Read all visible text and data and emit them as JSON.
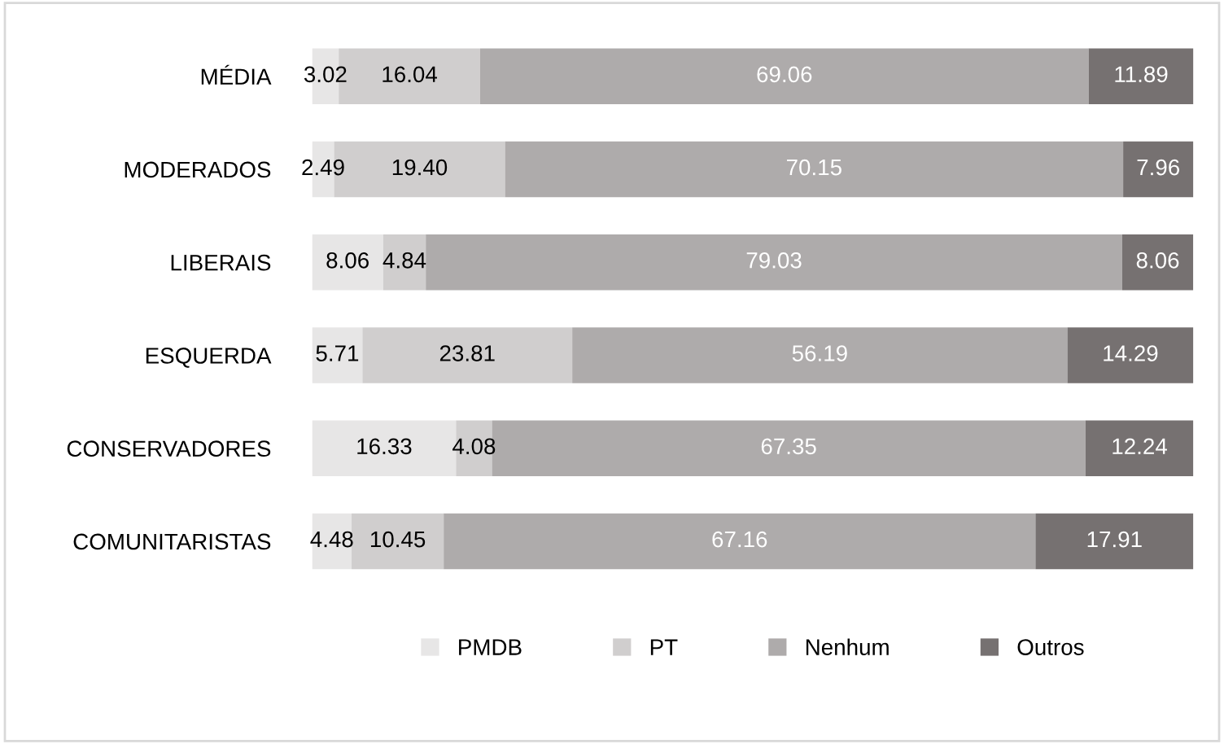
{
  "chart_data": {
    "type": "bar",
    "orientation": "horizontal",
    "stacked": true,
    "legend": "bottom",
    "grid": false,
    "categories": [
      "MÉDIA",
      "MODERADOS",
      "LIBERAIS",
      "ESQUERDA",
      "CONSERVADORES",
      "COMUNITARISTAS"
    ],
    "series": [
      {
        "name": "PMDB",
        "color": "#e7e6e6",
        "values": [
          3.02,
          2.49,
          8.06,
          5.71,
          16.33,
          4.48
        ],
        "value_labels": [
          "3.02",
          "2.49",
          "8.06",
          "5.71",
          "16.33",
          "4.48"
        ]
      },
      {
        "name": "PT",
        "color": "#d0cece",
        "values": [
          16.04,
          19.4,
          4.84,
          23.81,
          4.08,
          10.45
        ],
        "value_labels": [
          "16.04",
          "19.40",
          "4.84",
          "23.81",
          "4.08",
          "10.45"
        ]
      },
      {
        "name": "Nenhum",
        "color": "#aeabab",
        "values": [
          69.06,
          70.15,
          79.03,
          56.19,
          67.35,
          67.16
        ],
        "value_labels": [
          "69.06",
          "70.15",
          "79.03",
          "56.19",
          "67.35",
          "67.16"
        ]
      },
      {
        "name": "Outros",
        "color": "#767171",
        "values": [
          11.89,
          7.96,
          8.06,
          14.29,
          12.24,
          17.91
        ],
        "value_labels": [
          "11.89",
          "7.96",
          "8.06",
          "14.29",
          "12.24",
          "17.91"
        ]
      }
    ]
  }
}
